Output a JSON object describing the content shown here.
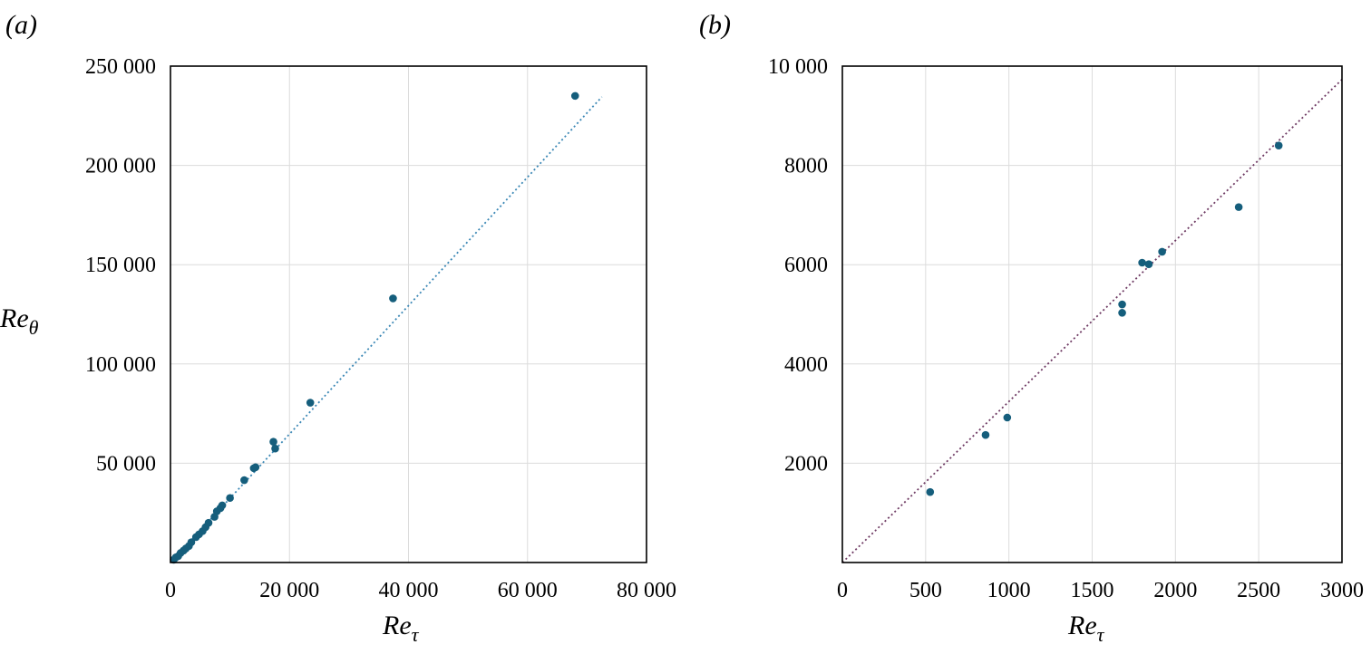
{
  "chart_data": [
    {
      "type": "scatter",
      "panel_label": "(a)",
      "xlabel": "Re",
      "xlabel_sub": "τ",
      "ylabel": "Re",
      "ylabel_sub": "θ",
      "xlim": [
        0,
        80000
      ],
      "ylim": [
        0,
        250000
      ],
      "xticks": [
        {
          "v": 0,
          "label": "0"
        },
        {
          "v": 20000,
          "label": "20 000"
        },
        {
          "v": 40000,
          "label": "40 000"
        },
        {
          "v": 60000,
          "label": "60 000"
        },
        {
          "v": 80000,
          "label": "80 000"
        }
      ],
      "yticks": [
        {
          "v": 50000,
          "label": "50 000"
        },
        {
          "v": 100000,
          "label": "100 000"
        },
        {
          "v": 150000,
          "label": "150 000"
        },
        {
          "v": 200000,
          "label": "200 000"
        },
        {
          "v": 250000,
          "label": "250 000"
        }
      ],
      "grid": true,
      "trendline": {
        "x": [
          0,
          72500
        ],
        "y": [
          0,
          234500
        ],
        "color": "#3a87b5",
        "style": "dotted"
      },
      "marker_color": "#155e7c",
      "series": [
        {
          "x": [
            550,
            900,
            1300,
            1700,
            2200,
            2600,
            3100,
            3500,
            4300,
            4800,
            5400,
            5900,
            6400,
            7400,
            7800,
            8400,
            8700,
            10000,
            12400,
            14000,
            14300,
            17300,
            17600,
            23500,
            37400,
            68000
          ],
          "y": [
            1400,
            2600,
            3200,
            4800,
            6000,
            7100,
            8300,
            10200,
            12800,
            14200,
            15800,
            17800,
            20000,
            23000,
            25800,
            27400,
            28800,
            32500,
            41500,
            47500,
            48000,
            60800,
            57400,
            80500,
            133000,
            235000
          ]
        }
      ]
    },
    {
      "type": "scatter",
      "panel_label": "(b)",
      "xlabel": "Re",
      "xlabel_sub": "τ",
      "xlim": [
        0,
        3000
      ],
      "ylim": [
        0,
        10000
      ],
      "xticks": [
        {
          "v": 0,
          "label": "0"
        },
        {
          "v": 500,
          "label": "500"
        },
        {
          "v": 1000,
          "label": "1000"
        },
        {
          "v": 1500,
          "label": "1500"
        },
        {
          "v": 2000,
          "label": "2000"
        },
        {
          "v": 2500,
          "label": "2500"
        },
        {
          "v": 3000,
          "label": "3000"
        }
      ],
      "yticks": [
        {
          "v": 2000,
          "label": "2000"
        },
        {
          "v": 4000,
          "label": "4000"
        },
        {
          "v": 6000,
          "label": "6000"
        },
        {
          "v": 8000,
          "label": "8000"
        },
        {
          "v": 10000,
          "label": "10 000"
        }
      ],
      "grid": true,
      "trendline": {
        "x": [
          0,
          3000
        ],
        "y": [
          0,
          9730
        ],
        "color": "#6e3a63",
        "style": "dotted"
      },
      "marker_color": "#155e7c",
      "series": [
        {
          "x": [
            527,
            860,
            990,
            1680,
            1680,
            1800,
            1840,
            1920,
            2380,
            2620
          ],
          "y": [
            1420,
            2570,
            2920,
            5030,
            5200,
            6040,
            6010,
            6260,
            7160,
            8400
          ]
        }
      ]
    }
  ]
}
